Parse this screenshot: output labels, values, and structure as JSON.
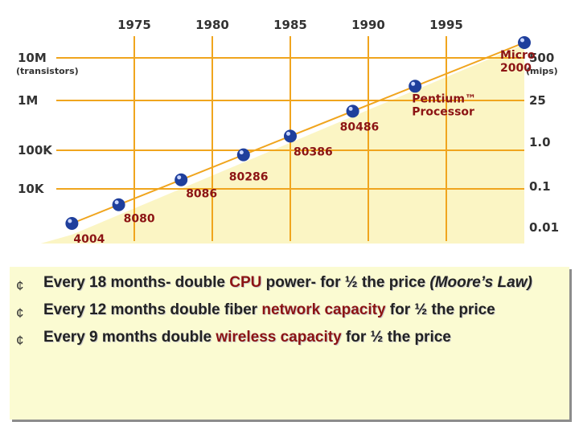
{
  "chart_data": {
    "type": "line",
    "x_ticks": [
      "1975",
      "1980",
      "1985",
      "1990",
      "1995"
    ],
    "x_range": [
      1970,
      2000
    ],
    "left_axis": {
      "unit_label": "(transistors)",
      "ticks": [
        "10M",
        "1M",
        "100K",
        "10K"
      ],
      "scale": "log"
    },
    "right_axis": {
      "unit_label": "(mips)",
      "ticks": [
        "500",
        "25",
        "1.0",
        "0.1",
        "0.01"
      ],
      "scale": "log"
    },
    "grid": true,
    "series": [
      {
        "points": [
          {
            "x": 1971,
            "label": "4004"
          },
          {
            "x": 1974,
            "label": "8080"
          },
          {
            "x": 1978,
            "label": "8086"
          },
          {
            "x": 1982,
            "label": "80286"
          },
          {
            "x": 1985,
            "label": "80386"
          },
          {
            "x": 1989,
            "label": "80486"
          },
          {
            "x": 1993,
            "label": "Pentium™ Processor"
          },
          {
            "x": 2000,
            "label": "Micro 2000"
          }
        ]
      }
    ],
    "colors": {
      "background": "#fbf5c4",
      "grid": "#f0a51e",
      "dot": "#1f3f9c",
      "label": "#8c1414",
      "axis_text": "#333333"
    }
  },
  "bullets": [
    {
      "marker": "¢",
      "parts": [
        {
          "text": "Every 18 months",
          "style": ""
        },
        {
          "text": "- double ",
          "style": ""
        },
        {
          "text": "CPU",
          "style": "red"
        },
        {
          "text": " power- for ½ the price ",
          "style": ""
        },
        {
          "text": "(Moore’s Law)",
          "style": "italic"
        }
      ]
    },
    {
      "marker": "¢",
      "parts": [
        {
          "text": "Every 12 months",
          "style": ""
        },
        {
          "text": " double fiber ",
          "style": ""
        },
        {
          "text": "network capacity",
          "style": "red"
        },
        {
          "text": " for ½ the price",
          "style": ""
        }
      ]
    },
    {
      "marker": "¢",
      "parts": [
        {
          "text": "Every 9 months",
          "style": ""
        },
        {
          "text": " double ",
          "style": ""
        },
        {
          "text": "wireless capacity",
          "style": "red"
        },
        {
          "text": " for ½  the price",
          "style": ""
        }
      ]
    }
  ]
}
